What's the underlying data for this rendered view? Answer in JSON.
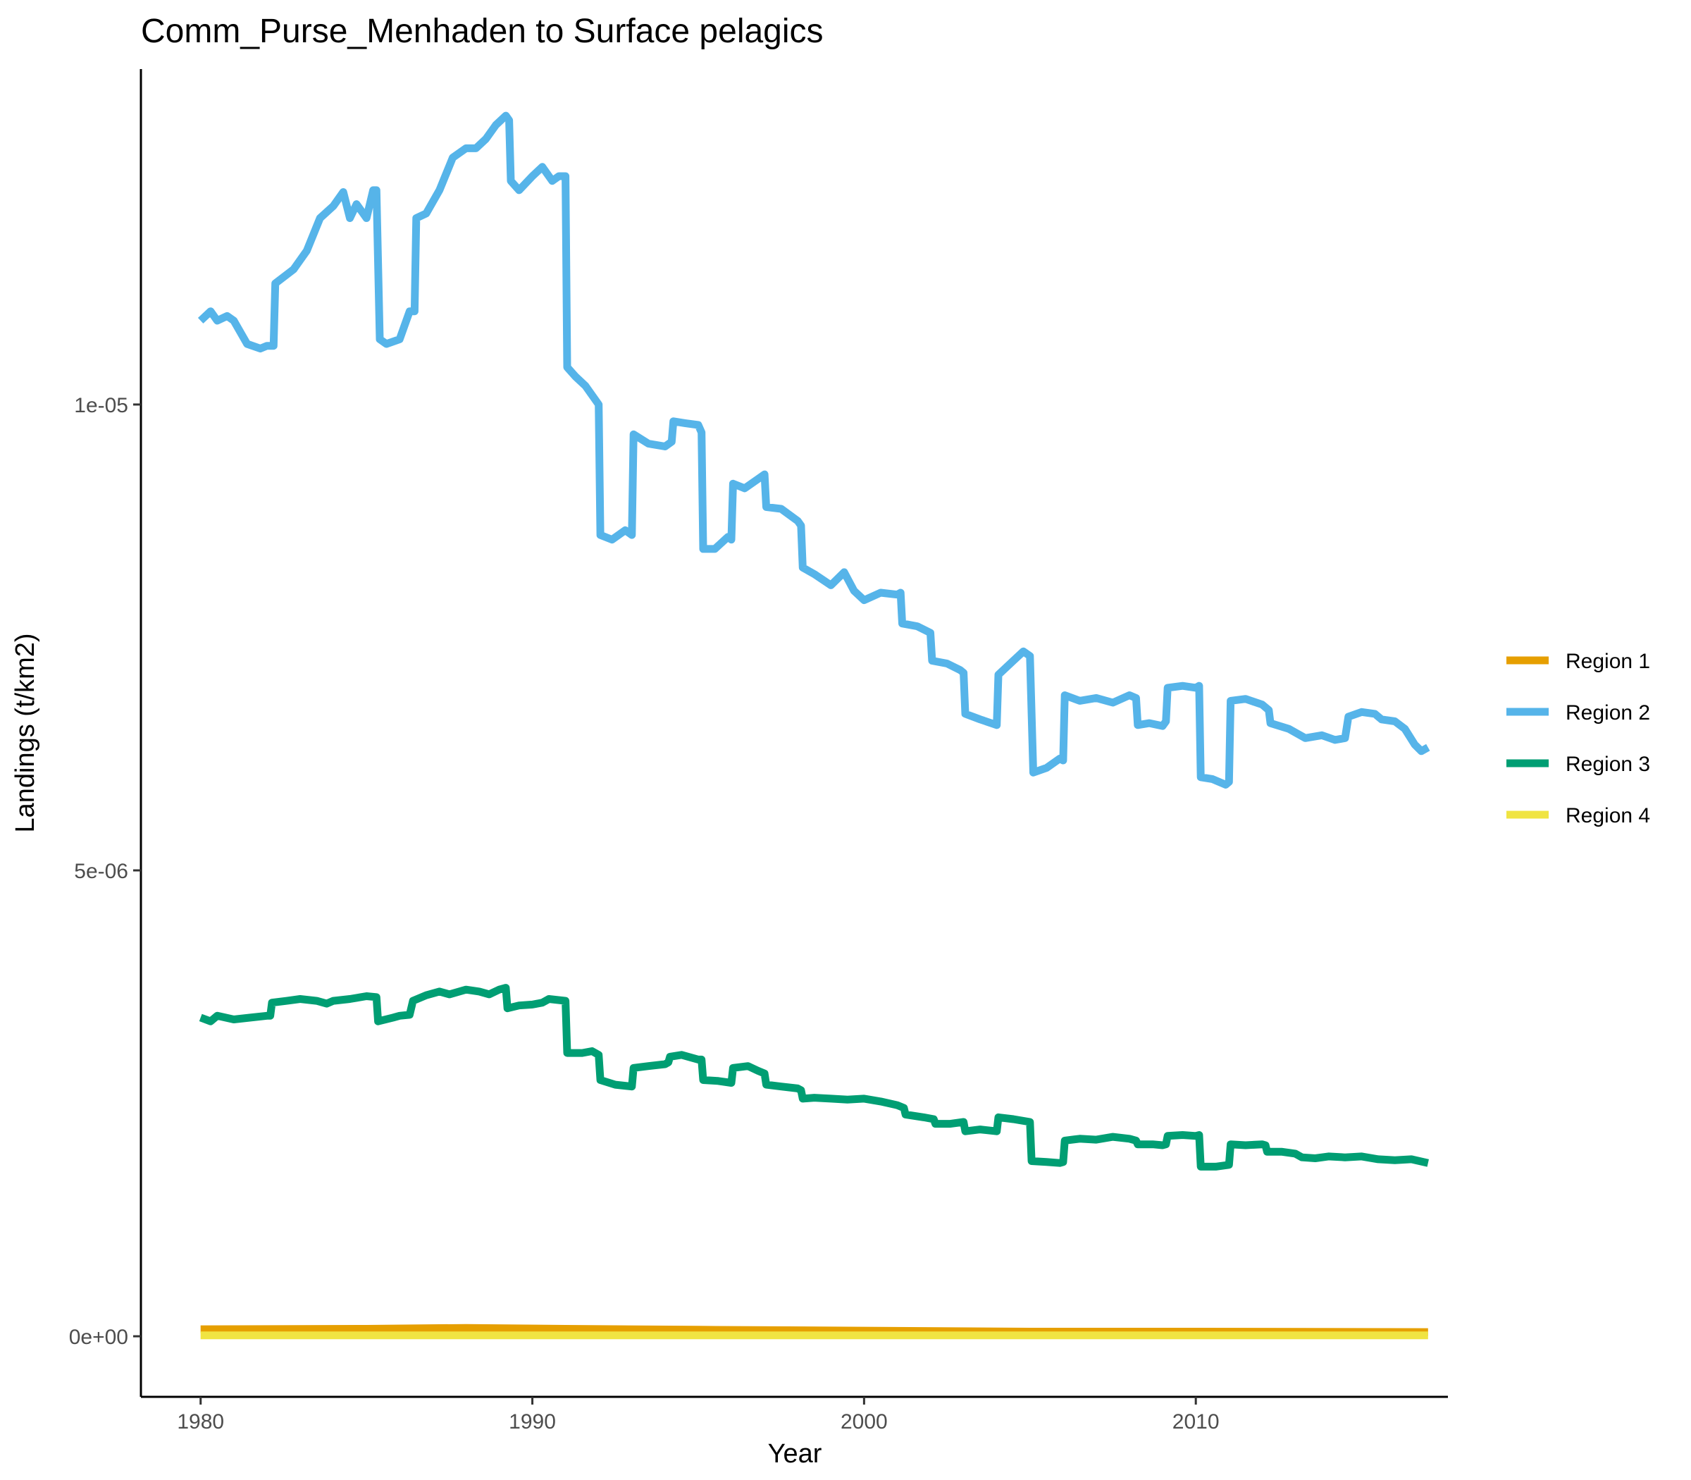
{
  "chart_data": {
    "type": "line",
    "title": "Comm_Purse_Menhaden to Surface pelagics",
    "xlabel": "Year",
    "ylabel": "Landings (t/km2)",
    "xlim": [
      1978.2,
      2017.6
    ],
    "ylim": [
      -6.5e-07,
      1.36e-05
    ],
    "x_ticks": [
      1980,
      1990,
      2000,
      2010
    ],
    "x_tick_labels": [
      "1980",
      "1990",
      "2000",
      "2010"
    ],
    "y_ticks": [
      0,
      5e-06,
      1e-05
    ],
    "y_tick_labels": [
      "0e+00",
      "5e-06",
      "1e-05"
    ],
    "grid": false,
    "legend_position": "right",
    "series": [
      {
        "name": "Region 1",
        "color": "#E69F00",
        "points": [
          [
            1980.0,
            7.5e-08
          ],
          [
            1985.0,
            8e-08
          ],
          [
            1988.0,
            9e-08
          ],
          [
            1991.0,
            8e-08
          ],
          [
            1995.0,
            7e-08
          ],
          [
            2000.0,
            6e-08
          ],
          [
            2005.0,
            5e-08
          ],
          [
            2010.0,
            5e-08
          ],
          [
            2017.0,
            4.5e-08
          ]
        ]
      },
      {
        "name": "Region 2",
        "color": "#56B4E9",
        "points": [
          [
            1980.0,
            1.09e-05
          ],
          [
            1980.3,
            1.1e-05
          ],
          [
            1980.5,
            1.09e-05
          ],
          [
            1980.8,
            1.095e-05
          ],
          [
            1981.0,
            1.09e-05
          ],
          [
            1981.4,
            1.065e-05
          ],
          [
            1981.8,
            1.06e-05
          ],
          [
            1982.0,
            1.063e-05
          ],
          [
            1982.2,
            1.063e-05
          ],
          [
            1982.25,
            1.13e-05
          ],
          [
            1982.8,
            1.145e-05
          ],
          [
            1983.2,
            1.165e-05
          ],
          [
            1983.6,
            1.2e-05
          ],
          [
            1984.0,
            1.213e-05
          ],
          [
            1984.3,
            1.228e-05
          ],
          [
            1984.5,
            1.2e-05
          ],
          [
            1984.7,
            1.215e-05
          ],
          [
            1985.0,
            1.2e-05
          ],
          [
            1985.2,
            1.23e-05
          ],
          [
            1985.3,
            1.23e-05
          ],
          [
            1985.4,
            1.07e-05
          ],
          [
            1985.6,
            1.065e-05
          ],
          [
            1986.0,
            1.07e-05
          ],
          [
            1986.3,
            1.1e-05
          ],
          [
            1986.45,
            1.1e-05
          ],
          [
            1986.5,
            1.2e-05
          ],
          [
            1986.8,
            1.205e-05
          ],
          [
            1987.2,
            1.23e-05
          ],
          [
            1987.6,
            1.265e-05
          ],
          [
            1988.0,
            1.275e-05
          ],
          [
            1988.3,
            1.275e-05
          ],
          [
            1988.6,
            1.285e-05
          ],
          [
            1988.9,
            1.3e-05
          ],
          [
            1989.2,
            1.31e-05
          ],
          [
            1989.3,
            1.305e-05
          ],
          [
            1989.35,
            1.24e-05
          ],
          [
            1989.6,
            1.23e-05
          ],
          [
            1990.0,
            1.245e-05
          ],
          [
            1990.3,
            1.255e-05
          ],
          [
            1990.6,
            1.24e-05
          ],
          [
            1990.8,
            1.245e-05
          ],
          [
            1991.0,
            1.245e-05
          ],
          [
            1991.05,
            1.04e-05
          ],
          [
            1991.3,
            1.03e-05
          ],
          [
            1991.6,
            1.02e-05
          ],
          [
            1992.0,
            1e-05
          ],
          [
            1992.05,
            8.6e-06
          ],
          [
            1992.4,
            8.55e-06
          ],
          [
            1992.8,
            8.65e-06
          ],
          [
            1993.0,
            8.6e-06
          ],
          [
            1993.05,
            9.68e-06
          ],
          [
            1993.5,
            9.58e-06
          ],
          [
            1994.0,
            9.55e-06
          ],
          [
            1994.2,
            9.6e-06
          ],
          [
            1994.25,
            9.82e-06
          ],
          [
            1994.6,
            9.8e-06
          ],
          [
            1995.0,
            9.78e-06
          ],
          [
            1995.1,
            9.7e-06
          ],
          [
            1995.15,
            8.45e-06
          ],
          [
            1995.5,
            8.45e-06
          ],
          [
            1995.9,
            8.58e-06
          ],
          [
            1996.0,
            8.55e-06
          ],
          [
            1996.05,
            9.15e-06
          ],
          [
            1996.4,
            9.1e-06
          ],
          [
            1996.8,
            9.2e-06
          ],
          [
            1997.0,
            9.25e-06
          ],
          [
            1997.05,
            8.9e-06
          ],
          [
            1997.5,
            8.88e-06
          ],
          [
            1998.0,
            8.75e-06
          ],
          [
            1998.1,
            8.7e-06
          ],
          [
            1998.15,
            8.25e-06
          ],
          [
            1998.5,
            8.18e-06
          ],
          [
            1999.0,
            8.06e-06
          ],
          [
            1999.4,
            8.2e-06
          ],
          [
            1999.7,
            8e-06
          ],
          [
            2000.0,
            7.9e-06
          ],
          [
            2000.5,
            7.98e-06
          ],
          [
            2001.0,
            7.96e-06
          ],
          [
            2001.1,
            7.98e-06
          ],
          [
            2001.15,
            7.65e-06
          ],
          [
            2001.6,
            7.62e-06
          ],
          [
            2002.0,
            7.55e-06
          ],
          [
            2002.05,
            7.25e-06
          ],
          [
            2002.5,
            7.22e-06
          ],
          [
            2002.9,
            7.15e-06
          ],
          [
            2003.0,
            7.12e-06
          ],
          [
            2003.05,
            6.68e-06
          ],
          [
            2003.5,
            6.62e-06
          ],
          [
            2004.0,
            6.56e-06
          ],
          [
            2004.05,
            7.1e-06
          ],
          [
            2004.5,
            7.25e-06
          ],
          [
            2004.8,
            7.35e-06
          ],
          [
            2005.0,
            7.3e-06
          ],
          [
            2005.1,
            6.05e-06
          ],
          [
            2005.5,
            6.1e-06
          ],
          [
            2005.9,
            6.2e-06
          ],
          [
            2006.0,
            6.18e-06
          ],
          [
            2006.05,
            6.88e-06
          ],
          [
            2006.5,
            6.82e-06
          ],
          [
            2007.0,
            6.85e-06
          ],
          [
            2007.5,
            6.8e-06
          ],
          [
            2008.0,
            6.88e-06
          ],
          [
            2008.2,
            6.85e-06
          ],
          [
            2008.25,
            6.56e-06
          ],
          [
            2008.6,
            6.58e-06
          ],
          [
            2009.0,
            6.55e-06
          ],
          [
            2009.1,
            6.6e-06
          ],
          [
            2009.15,
            6.96e-06
          ],
          [
            2009.6,
            6.98e-06
          ],
          [
            2010.0,
            6.96e-06
          ],
          [
            2010.1,
            6.98e-06
          ],
          [
            2010.15,
            6e-06
          ],
          [
            2010.5,
            5.98e-06
          ],
          [
            2010.9,
            5.92e-06
          ],
          [
            2011.0,
            5.95e-06
          ],
          [
            2011.05,
            6.82e-06
          ],
          [
            2011.5,
            6.84e-06
          ],
          [
            2012.0,
            6.78e-06
          ],
          [
            2012.2,
            6.72e-06
          ],
          [
            2012.25,
            6.58e-06
          ],
          [
            2012.8,
            6.52e-06
          ],
          [
            2013.3,
            6.42e-06
          ],
          [
            2013.8,
            6.45e-06
          ],
          [
            2014.2,
            6.4e-06
          ],
          [
            2014.5,
            6.42e-06
          ],
          [
            2014.6,
            6.65e-06
          ],
          [
            2015.0,
            6.7e-06
          ],
          [
            2015.4,
            6.68e-06
          ],
          [
            2015.6,
            6.62e-06
          ],
          [
            2016.0,
            6.6e-06
          ],
          [
            2016.3,
            6.52e-06
          ],
          [
            2016.6,
            6.35e-06
          ],
          [
            2016.8,
            6.28e-06
          ],
          [
            2017.0,
            6.32e-06
          ]
        ]
      },
      {
        "name": "Region 3",
        "color": "#009E73",
        "points": [
          [
            1980.0,
            3.42e-06
          ],
          [
            1980.3,
            3.38e-06
          ],
          [
            1980.5,
            3.44e-06
          ],
          [
            1981.0,
            3.4e-06
          ],
          [
            1981.5,
            3.42e-06
          ],
          [
            1982.0,
            3.44e-06
          ],
          [
            1982.1,
            3.44e-06
          ],
          [
            1982.15,
            3.58e-06
          ],
          [
            1982.6,
            3.6e-06
          ],
          [
            1983.0,
            3.62e-06
          ],
          [
            1983.5,
            3.6e-06
          ],
          [
            1983.8,
            3.57e-06
          ],
          [
            1984.0,
            3.6e-06
          ],
          [
            1984.5,
            3.62e-06
          ],
          [
            1985.0,
            3.65e-06
          ],
          [
            1985.3,
            3.64e-06
          ],
          [
            1985.35,
            3.38e-06
          ],
          [
            1985.8,
            3.42e-06
          ],
          [
            1986.0,
            3.44e-06
          ],
          [
            1986.3,
            3.45e-06
          ],
          [
            1986.4,
            3.6e-06
          ],
          [
            1986.8,
            3.66e-06
          ],
          [
            1987.2,
            3.7e-06
          ],
          [
            1987.5,
            3.67e-06
          ],
          [
            1988.0,
            3.72e-06
          ],
          [
            1988.4,
            3.7e-06
          ],
          [
            1988.7,
            3.67e-06
          ],
          [
            1989.0,
            3.72e-06
          ],
          [
            1989.2,
            3.74e-06
          ],
          [
            1989.25,
            3.52e-06
          ],
          [
            1989.6,
            3.55e-06
          ],
          [
            1990.0,
            3.56e-06
          ],
          [
            1990.3,
            3.58e-06
          ],
          [
            1990.5,
            3.62e-06
          ],
          [
            1991.0,
            3.6e-06
          ],
          [
            1991.05,
            3.04e-06
          ],
          [
            1991.5,
            3.04e-06
          ],
          [
            1991.8,
            3.06e-06
          ],
          [
            1992.0,
            3.02e-06
          ],
          [
            1992.05,
            2.75e-06
          ],
          [
            1992.5,
            2.7e-06
          ],
          [
            1993.0,
            2.68e-06
          ],
          [
            1993.05,
            2.88e-06
          ],
          [
            1993.5,
            2.9e-06
          ],
          [
            1994.0,
            2.92e-06
          ],
          [
            1994.1,
            2.94e-06
          ],
          [
            1994.15,
            3e-06
          ],
          [
            1994.5,
            3.02e-06
          ],
          [
            1995.0,
            2.97e-06
          ],
          [
            1995.1,
            2.97e-06
          ],
          [
            1995.15,
            2.75e-06
          ],
          [
            1995.6,
            2.74e-06
          ],
          [
            1996.0,
            2.72e-06
          ],
          [
            1996.05,
            2.88e-06
          ],
          [
            1996.5,
            2.9e-06
          ],
          [
            1996.8,
            2.85e-06
          ],
          [
            1997.0,
            2.82e-06
          ],
          [
            1997.05,
            2.7e-06
          ],
          [
            1997.5,
            2.68e-06
          ],
          [
            1998.0,
            2.66e-06
          ],
          [
            1998.1,
            2.64e-06
          ],
          [
            1998.15,
            2.55e-06
          ],
          [
            1998.5,
            2.56e-06
          ],
          [
            1999.0,
            2.55e-06
          ],
          [
            1999.5,
            2.54e-06
          ],
          [
            2000.0,
            2.55e-06
          ],
          [
            2000.5,
            2.52e-06
          ],
          [
            2001.0,
            2.48e-06
          ],
          [
            2001.2,
            2.45e-06
          ],
          [
            2001.25,
            2.38e-06
          ],
          [
            2001.8,
            2.35e-06
          ],
          [
            2002.1,
            2.33e-06
          ],
          [
            2002.15,
            2.28e-06
          ],
          [
            2002.6,
            2.28e-06
          ],
          [
            2003.0,
            2.3e-06
          ],
          [
            2003.05,
            2.2e-06
          ],
          [
            2003.5,
            2.22e-06
          ],
          [
            2004.0,
            2.2e-06
          ],
          [
            2004.05,
            2.35e-06
          ],
          [
            2004.5,
            2.33e-06
          ],
          [
            2005.0,
            2.3e-06
          ],
          [
            2005.05,
            1.88e-06
          ],
          [
            2005.5,
            1.87e-06
          ],
          [
            2005.9,
            1.86e-06
          ],
          [
            2006.0,
            1.87e-06
          ],
          [
            2006.05,
            2.1e-06
          ],
          [
            2006.5,
            2.12e-06
          ],
          [
            2007.0,
            2.11e-06
          ],
          [
            2007.5,
            2.14e-06
          ],
          [
            2008.0,
            2.12e-06
          ],
          [
            2008.2,
            2.1e-06
          ],
          [
            2008.25,
            2.06e-06
          ],
          [
            2008.7,
            2.06e-06
          ],
          [
            2009.0,
            2.05e-06
          ],
          [
            2009.1,
            2.06e-06
          ],
          [
            2009.15,
            2.15e-06
          ],
          [
            2009.6,
            2.16e-06
          ],
          [
            2010.0,
            2.15e-06
          ],
          [
            2010.1,
            2.16e-06
          ],
          [
            2010.15,
            1.82e-06
          ],
          [
            2010.6,
            1.82e-06
          ],
          [
            2011.0,
            1.84e-06
          ],
          [
            2011.05,
            2.06e-06
          ],
          [
            2011.5,
            2.05e-06
          ],
          [
            2012.0,
            2.06e-06
          ],
          [
            2012.1,
            2.05e-06
          ],
          [
            2012.15,
            1.98e-06
          ],
          [
            2012.6,
            1.98e-06
          ],
          [
            2013.0,
            1.96e-06
          ],
          [
            2013.2,
            1.92e-06
          ],
          [
            2013.6,
            1.91e-06
          ],
          [
            2014.0,
            1.93e-06
          ],
          [
            2014.5,
            1.92e-06
          ],
          [
            2015.0,
            1.93e-06
          ],
          [
            2015.5,
            1.9e-06
          ],
          [
            2016.0,
            1.89e-06
          ],
          [
            2016.5,
            1.9e-06
          ],
          [
            2017.0,
            1.86e-06
          ]
        ]
      },
      {
        "name": "Region 4",
        "color": "#F0E442",
        "points": [
          [
            1980.0,
            1e-08
          ],
          [
            1990.0,
            1e-08
          ],
          [
            2000.0,
            1e-08
          ],
          [
            2010.0,
            1e-08
          ],
          [
            2017.0,
            1e-08
          ]
        ]
      }
    ]
  }
}
